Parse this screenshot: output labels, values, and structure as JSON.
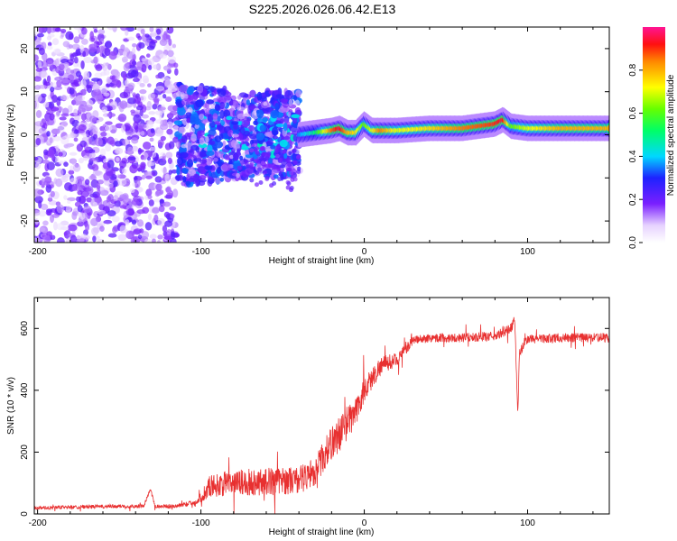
{
  "title": "S225.2026.026.06.42.E13",
  "colors": {
    "snr_line": "#e83030",
    "spectrogram_low": "#8a2be2",
    "background": "#ffffff"
  },
  "chart_data": [
    {
      "type": "heatmap",
      "name": "spectrogram",
      "xlabel": "Height of straight line (km)",
      "ylabel": "Frequency (Hz)",
      "xlim": [
        -202,
        150
      ],
      "ylim": [
        -25,
        25
      ],
      "x_ticks": [
        -200,
        -100,
        0,
        100
      ],
      "x_tick_labels": [
        "-200",
        "-100",
        "0",
        "100"
      ],
      "y_ticks": [
        -20,
        -10,
        0,
        10,
        20
      ],
      "y_tick_labels": [
        "-20",
        "-10",
        "0",
        "10",
        "20"
      ],
      "ridge": {
        "x": [
          -40,
          -30,
          -20,
          -15,
          -10,
          -5,
          0,
          5,
          10,
          20,
          40,
          60,
          80,
          85,
          90,
          100,
          120,
          150
        ],
        "freq": [
          0,
          0.5,
          1,
          1.5,
          0.5,
          0.5,
          2.5,
          1,
          1,
          1,
          1.5,
          1.5,
          2.5,
          3.5,
          2,
          1.5,
          1.5,
          1.5
        ],
        "amplitude": [
          0.35,
          0.5,
          0.85,
          0.95,
          0.8,
          0.75,
          0.6,
          0.7,
          0.85,
          0.7,
          0.75,
          0.85,
          0.9,
          0.95,
          0.6,
          0.7,
          0.8,
          0.8
        ]
      },
      "colorbar": {
        "label": "Normalized spectral amplitude",
        "range": [
          0,
          1
        ],
        "ticks": [
          0.0,
          0.2,
          0.4,
          0.6,
          0.8
        ],
        "tick_labels": [
          "0.0",
          "0.2",
          "0.4",
          "0.6",
          "0.8"
        ]
      }
    },
    {
      "type": "line",
      "name": "snr",
      "xlabel": "Height of straight line (km)",
      "ylabel": "SNR (10 * v/v)",
      "xlim": [
        -202,
        150
      ],
      "ylim": [
        0,
        700
      ],
      "x_ticks": [
        -200,
        -100,
        0,
        100
      ],
      "x_tick_labels": [
        "-200",
        "-100",
        "0",
        "100"
      ],
      "y_ticks": [
        0,
        200,
        400,
        600
      ],
      "y_tick_labels": [
        "0",
        "200",
        "400",
        "600"
      ],
      "series": [
        {
          "name": "SNR",
          "x": [
            -202,
            -180,
            -150,
            -135,
            -131,
            -128,
            -115,
            -102,
            -95,
            -80,
            -60,
            -40,
            -30,
            -20,
            -15,
            -10,
            -5,
            0,
            5,
            10,
            15,
            20,
            25,
            30,
            35,
            40,
            60,
            80,
            90,
            92,
            94,
            95,
            100,
            120,
            150
          ],
          "y": [
            20,
            22,
            25,
            25,
            80,
            25,
            25,
            40,
            90,
            100,
            105,
            110,
            140,
            230,
            260,
            300,
            330,
            400,
            440,
            480,
            490,
            500,
            530,
            560,
            565,
            570,
            570,
            575,
            600,
            640,
            320,
            520,
            565,
            570,
            570
          ],
          "noise": [
            10,
            10,
            10,
            10,
            10,
            10,
            10,
            15,
            60,
            70,
            75,
            75,
            80,
            90,
            100,
            90,
            80,
            70,
            60,
            50,
            45,
            35,
            30,
            25,
            25,
            25,
            25,
            25,
            30,
            30,
            10,
            25,
            25,
            25,
            25
          ]
        }
      ]
    }
  ]
}
